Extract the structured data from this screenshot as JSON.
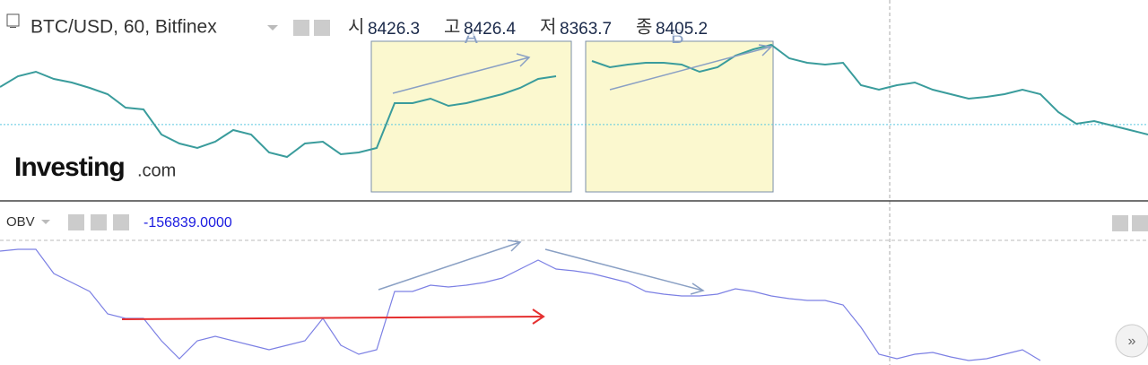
{
  "chart_data": [
    {
      "type": "line",
      "title": "BTC/USD, 60, Bitfinex",
      "ohlc": [
        {
          "label": "시",
          "value": 8426.3
        },
        {
          "label": "고",
          "value": 8426.4
        },
        {
          "label": "저",
          "value": 8363.7
        },
        {
          "label": "종",
          "value": 8405.2
        }
      ],
      "annotations": [
        "A",
        "B"
      ],
      "logo": [
        "Investing",
        ".com"
      ],
      "color": "#3a9c9c",
      "price_line": 8405.2,
      "ylim": [
        8239,
        8683
      ],
      "values": [
        8489,
        8513,
        8523,
        8507,
        8499,
        8487,
        8473,
        8443,
        8439,
        8383,
        8363,
        8353,
        8367,
        8393,
        8383,
        8343,
        8333,
        8363,
        8367,
        8339,
        8343,
        8353,
        8453,
        8453,
        8463,
        8447,
        8453,
        8463,
        8473,
        8487,
        8507,
        8513,
        null,
        8547,
        8533,
        8539,
        8543,
        8543,
        8539,
        8523,
        8533,
        8559,
        8573,
        8583,
        8553,
        8543,
        8539,
        8543,
        8493,
        8483,
        8493,
        8499,
        8483,
        8473,
        8463,
        8467,
        8473,
        8483,
        8473,
        8433,
        8407,
        8413,
        8403,
        8393,
        8383
      ]
    },
    {
      "type": "line",
      "title": "OBV",
      "last_value_label": "-156839.0000",
      "color": "#7c80e4",
      "ylim": [
        -160000,
        -15200
      ],
      "values": [
        -58400,
        -56800,
        -56800,
        -78400,
        -86400,
        -94400,
        -114400,
        -118400,
        -118400,
        -138400,
        -154400,
        -138400,
        -134400,
        -138400,
        -142400,
        -146400,
        -142400,
        -138400,
        -118400,
        -142400,
        -150400,
        -146400,
        -94400,
        -94400,
        -88800,
        -90400,
        -88800,
        -86400,
        -82400,
        -74400,
        -66400,
        -74400,
        -76000,
        -78400,
        -82400,
        -86400,
        -94400,
        -96800,
        -98400,
        -98400,
        -96800,
        -92000,
        -94400,
        -98400,
        -100800,
        -102400,
        -102400,
        -106400,
        -126400,
        -150400,
        -154400,
        -150400,
        -148800,
        -152800,
        -156000,
        -154400,
        -150400,
        -146400,
        -156000
      ]
    }
  ]
}
